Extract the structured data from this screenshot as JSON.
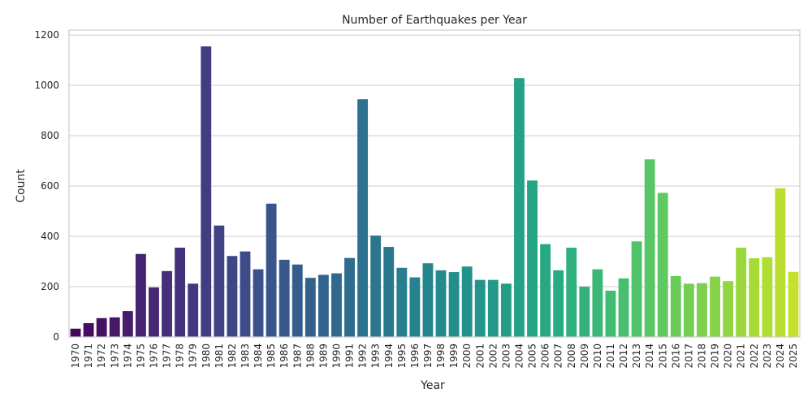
{
  "chart_data": {
    "type": "bar",
    "title": "Number of Earthquakes per Year",
    "xlabel": "Year",
    "ylabel": "Count",
    "ylim": [
      0,
      1220
    ],
    "yticks": [
      0,
      200,
      400,
      600,
      800,
      1000,
      1200
    ],
    "grid": "y-axis, horizontal lines",
    "legend": "none",
    "palette": "viridis",
    "categories": [
      "1970",
      "1971",
      "1972",
      "1973",
      "1974",
      "1975",
      "1976",
      "1977",
      "1978",
      "1979",
      "1980",
      "1981",
      "1982",
      "1983",
      "1984",
      "1985",
      "1986",
      "1987",
      "1988",
      "1989",
      "1990",
      "1991",
      "1992",
      "1993",
      "1994",
      "1995",
      "1996",
      "1997",
      "1998",
      "1999",
      "2000",
      "2001",
      "2002",
      "2003",
      "2004",
      "2005",
      "2006",
      "2007",
      "2008",
      "2009",
      "2010",
      "2011",
      "2012",
      "2013",
      "2014",
      "2015",
      "2016",
      "2017",
      "2018",
      "2019",
      "2020",
      "2021",
      "2022",
      "2023",
      "2024",
      "2025"
    ],
    "values": [
      33,
      55,
      75,
      78,
      103,
      330,
      197,
      262,
      355,
      212,
      1155,
      443,
      322,
      340,
      269,
      530,
      307,
      288,
      235,
      247,
      253,
      314,
      945,
      403,
      358,
      275,
      237,
      293,
      265,
      258,
      280,
      227,
      227,
      212,
      1029,
      622,
      369,
      265,
      355,
      200,
      269,
      184,
      233,
      380,
      706,
      573,
      242,
      212,
      214,
      240,
      222,
      355,
      313,
      317,
      591,
      259
    ]
  },
  "colors": {
    "background": "#ffffff",
    "grid": "#cccccc",
    "spine": "#cccccc",
    "text": "#262626"
  }
}
